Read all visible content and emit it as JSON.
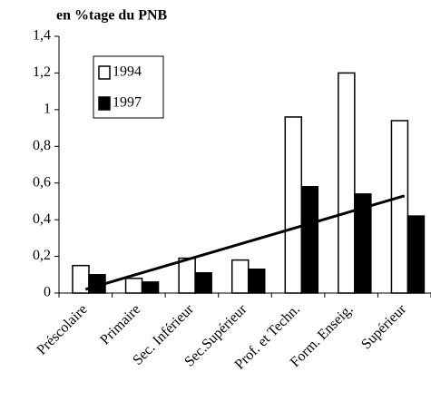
{
  "chart_data": {
    "type": "bar",
    "title": "en %tage du PNB",
    "categories": [
      "Préscolaire",
      "Primaire",
      "Sec. Inférieur",
      "Sec.Supérieur",
      "Prof. et Techn.",
      "Form. Enseig.",
      "Supérieur"
    ],
    "series": [
      {
        "name": "1994",
        "color": "#ffffff",
        "values": [
          0.15,
          0.08,
          0.19,
          0.18,
          0.96,
          1.2,
          0.94
        ]
      },
      {
        "name": "1997",
        "color": "#000000",
        "values": [
          0.1,
          0.06,
          0.11,
          0.13,
          0.58,
          0.54,
          0.42
        ]
      }
    ],
    "trendline": {
      "start": 0.02,
      "end": 0.53
    },
    "ylim": [
      0,
      1.4
    ],
    "yticks": [
      0,
      {
        "value": 0.2,
        "label": "0,2"
      },
      {
        "value": 0.4,
        "label": "0,4"
      },
      {
        "value": 0.6,
        "label": "0,6"
      },
      {
        "value": 0.8,
        "label": "0,8"
      },
      1,
      {
        "value": 1.2,
        "label": "1,2"
      },
      {
        "value": 1.4,
        "label": "1,4"
      }
    ],
    "legend": "upper left"
  }
}
